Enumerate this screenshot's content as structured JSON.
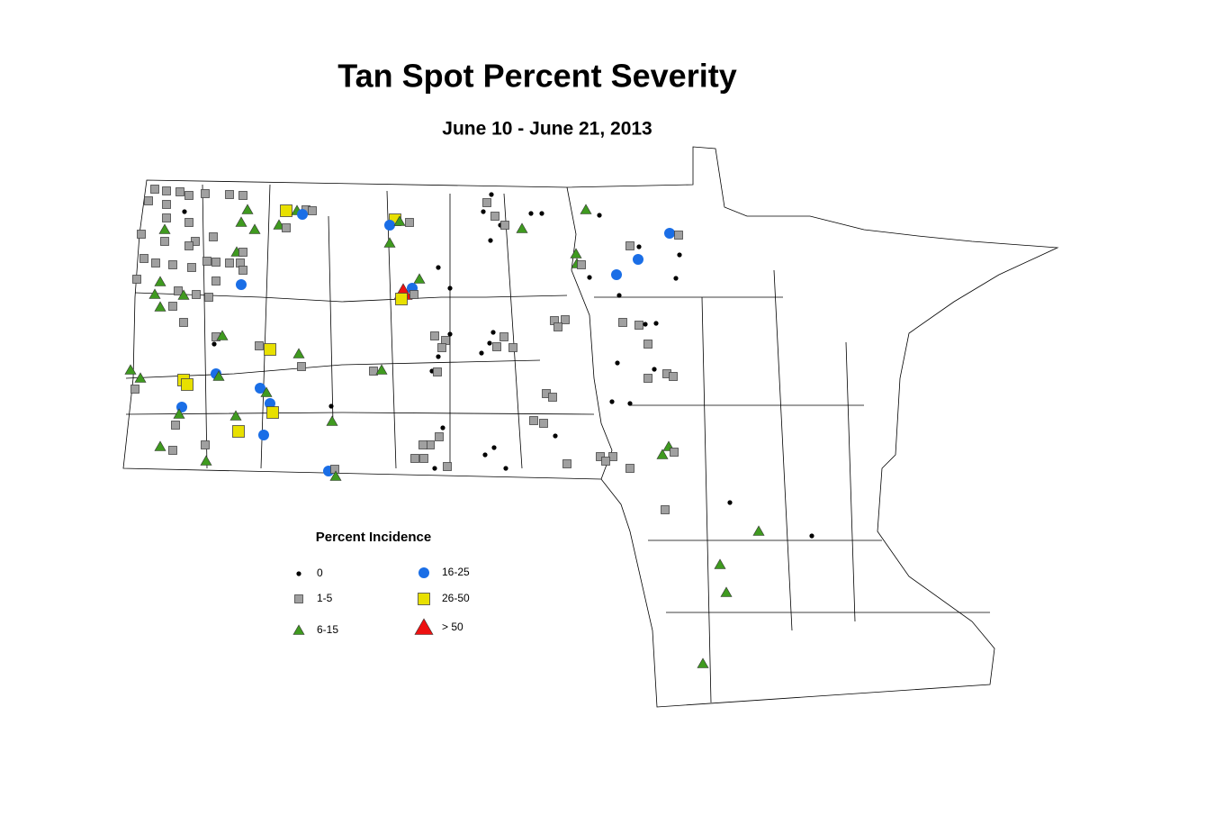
{
  "title": "Tan Spot Percent Severity",
  "subtitle": "June 10 - June 21, 2013",
  "legend": {
    "title": "Percent Incidence",
    "items": [
      {
        "label": "0",
        "shape": "dot",
        "color": "#000000"
      },
      {
        "label": "1-5",
        "shape": "square",
        "color": "#a0a0a0"
      },
      {
        "label": "6-15",
        "shape": "triangle",
        "color": "#3f9a1f"
      },
      {
        "label": "16-25",
        "shape": "circle",
        "color": "#1a6ee6"
      },
      {
        "label": "26-50",
        "shape": "big-square",
        "color": "#e8e000"
      },
      {
        "label": "> 50",
        "shape": "big-triangle",
        "color": "#ee1111"
      }
    ]
  }
}
